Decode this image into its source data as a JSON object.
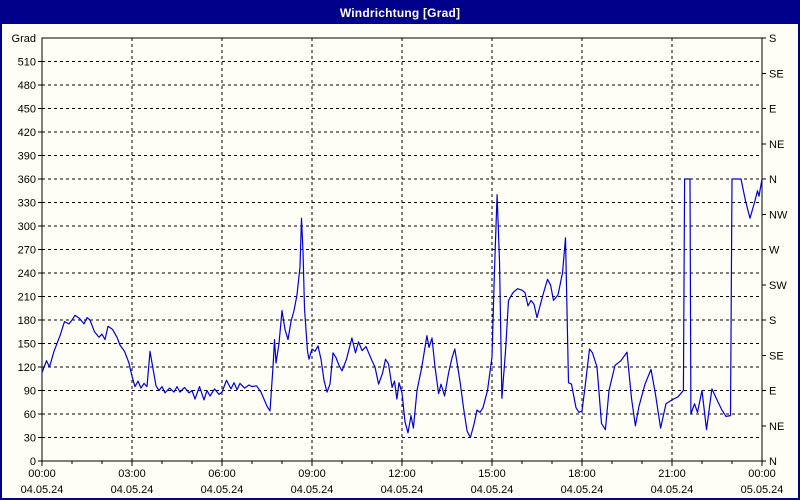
{
  "window": {
    "title": "Windrichtung [Grad]"
  },
  "colors": {
    "titlebar_bg": "#00008b",
    "titlebar_text": "#ffffff",
    "window_border": "#00008b",
    "background": "#fffef6",
    "grid": "#000000",
    "axis": "#000000",
    "tick_text": "#000000",
    "line": "#0000d8"
  },
  "chart_data": {
    "type": "line",
    "title": "Windrichtung [Grad]",
    "ylabel_left": "Grad",
    "ylim": [
      0,
      540
    ],
    "xlim_hours": [
      0,
      24
    ],
    "grid": "dashed",
    "legend": "none",
    "y_ticks_left": [
      0,
      30,
      60,
      90,
      120,
      150,
      180,
      210,
      240,
      270,
      300,
      330,
      360,
      390,
      420,
      450,
      480,
      510
    ],
    "y_ticks_right": [
      {
        "deg": 0,
        "label": "N"
      },
      {
        "deg": 45,
        "label": "NE"
      },
      {
        "deg": 90,
        "label": "E"
      },
      {
        "deg": 135,
        "label": "SE"
      },
      {
        "deg": 180,
        "label": "S"
      },
      {
        "deg": 225,
        "label": "SW"
      },
      {
        "deg": 270,
        "label": "W"
      },
      {
        "deg": 315,
        "label": "NW"
      },
      {
        "deg": 360,
        "label": "N"
      },
      {
        "deg": 405,
        "label": "NE"
      },
      {
        "deg": 450,
        "label": "E"
      },
      {
        "deg": 495,
        "label": "SE"
      },
      {
        "deg": 540,
        "label": "S"
      }
    ],
    "x_ticks": [
      {
        "hour": 0,
        "time": "00:00",
        "date": "04.05.24"
      },
      {
        "hour": 3,
        "time": "03:00",
        "date": "04.05.24"
      },
      {
        "hour": 6,
        "time": "06:00",
        "date": "04.05.24"
      },
      {
        "hour": 9,
        "time": "09:00",
        "date": "04.05.24"
      },
      {
        "hour": 12,
        "time": "12:00",
        "date": "04.05.24"
      },
      {
        "hour": 15,
        "time": "15:00",
        "date": "04.05.24"
      },
      {
        "hour": 18,
        "time": "18:00",
        "date": "04.05.24"
      },
      {
        "hour": 21,
        "time": "21:00",
        "date": "04.05.24"
      },
      {
        "hour": 24,
        "time": "00:00",
        "date": "05.05.24"
      }
    ],
    "x_minor_step_hours": 1,
    "series": [
      {
        "name": "Windrichtung",
        "color": "#0000d8",
        "points": [
          [
            0,
            113
          ],
          [
            0.15,
            128
          ],
          [
            0.25,
            120
          ],
          [
            0.4,
            140
          ],
          [
            0.6,
            160
          ],
          [
            0.75,
            178
          ],
          [
            0.9,
            175
          ],
          [
            1,
            180
          ],
          [
            1.1,
            186
          ],
          [
            1.25,
            182
          ],
          [
            1.4,
            175
          ],
          [
            1.5,
            183
          ],
          [
            1.6,
            180
          ],
          [
            1.75,
            165
          ],
          [
            1.9,
            158
          ],
          [
            2,
            162
          ],
          [
            2.1,
            155
          ],
          [
            2.2,
            172
          ],
          [
            2.35,
            168
          ],
          [
            2.5,
            158
          ],
          [
            2.6,
            148
          ],
          [
            2.75,
            140
          ],
          [
            2.9,
            125
          ],
          [
            3,
            108
          ],
          [
            3.1,
            95
          ],
          [
            3.2,
            102
          ],
          [
            3.3,
            93
          ],
          [
            3.4,
            99
          ],
          [
            3.5,
            95
          ],
          [
            3.6,
            140
          ],
          [
            3.7,
            118
          ],
          [
            3.8,
            96
          ],
          [
            3.9,
            90
          ],
          [
            4,
            95
          ],
          [
            4.1,
            87
          ],
          [
            4.25,
            93
          ],
          [
            4.4,
            88
          ],
          [
            4.5,
            95
          ],
          [
            4.6,
            88
          ],
          [
            4.75,
            94
          ],
          [
            4.9,
            87
          ],
          [
            5,
            90
          ],
          [
            5.1,
            79
          ],
          [
            5.25,
            95
          ],
          [
            5.4,
            78
          ],
          [
            5.5,
            90
          ],
          [
            5.6,
            83
          ],
          [
            5.75,
            92
          ],
          [
            5.9,
            85
          ],
          [
            6,
            88
          ],
          [
            6.15,
            103
          ],
          [
            6.3,
            92
          ],
          [
            6.4,
            100
          ],
          [
            6.5,
            91
          ],
          [
            6.6,
            99
          ],
          [
            6.75,
            93
          ],
          [
            6.9,
            97
          ],
          [
            7,
            95
          ],
          [
            7.15,
            96
          ],
          [
            7.3,
            88
          ],
          [
            7.5,
            70
          ],
          [
            7.6,
            64
          ],
          [
            7.7,
            120
          ],
          [
            7.75,
            155
          ],
          [
            7.8,
            125
          ],
          [
            7.9,
            150
          ],
          [
            8,
            192
          ],
          [
            8.1,
            168
          ],
          [
            8.2,
            155
          ],
          [
            8.3,
            178
          ],
          [
            8.4,
            192
          ],
          [
            8.5,
            212
          ],
          [
            8.6,
            248
          ],
          [
            8.65,
            310
          ],
          [
            8.7,
            268
          ],
          [
            8.75,
            195
          ],
          [
            8.85,
            140
          ],
          [
            8.9,
            130
          ],
          [
            9,
            143
          ],
          [
            9.1,
            140
          ],
          [
            9.2,
            147
          ],
          [
            9.3,
            130
          ],
          [
            9.4,
            103
          ],
          [
            9.5,
            88
          ],
          [
            9.6,
            98
          ],
          [
            9.7,
            138
          ],
          [
            9.8,
            132
          ],
          [
            9.9,
            122
          ],
          [
            10,
            115
          ],
          [
            10.15,
            130
          ],
          [
            10.33,
            157
          ],
          [
            10.45,
            138
          ],
          [
            10.55,
            152
          ],
          [
            10.67,
            141
          ],
          [
            10.8,
            146
          ],
          [
            11,
            128
          ],
          [
            11.1,
            120
          ],
          [
            11.22,
            98
          ],
          [
            11.35,
            112
          ],
          [
            11.45,
            130
          ],
          [
            11.55,
            124
          ],
          [
            11.67,
            94
          ],
          [
            11.75,
            102
          ],
          [
            11.83,
            79
          ],
          [
            11.9,
            100
          ],
          [
            12,
            87
          ],
          [
            12.1,
            50
          ],
          [
            12.2,
            36
          ],
          [
            12.3,
            58
          ],
          [
            12.38,
            42
          ],
          [
            12.5,
            90
          ],
          [
            12.65,
            118
          ],
          [
            12.72,
            134
          ],
          [
            12.83,
            160
          ],
          [
            12.9,
            145
          ],
          [
            13,
            157
          ],
          [
            13.1,
            120
          ],
          [
            13.22,
            86
          ],
          [
            13.3,
            98
          ],
          [
            13.42,
            83
          ],
          [
            13.55,
            112
          ],
          [
            13.67,
            132
          ],
          [
            13.76,
            143
          ],
          [
            13.85,
            122
          ],
          [
            13.94,
            100
          ],
          [
            14.05,
            68
          ],
          [
            14.17,
            38
          ],
          [
            14.28,
            30
          ],
          [
            14.4,
            47
          ],
          [
            14.5,
            65
          ],
          [
            14.6,
            62
          ],
          [
            14.7,
            68
          ],
          [
            14.85,
            90
          ],
          [
            15,
            133
          ],
          [
            15.08,
            240
          ],
          [
            15.17,
            340
          ],
          [
            15.25,
            255
          ],
          [
            15.33,
            80
          ],
          [
            15.45,
            140
          ],
          [
            15.55,
            205
          ],
          [
            15.7,
            215
          ],
          [
            15.85,
            220
          ],
          [
            16,
            218
          ],
          [
            16.1,
            215
          ],
          [
            16.2,
            198
          ],
          [
            16.3,
            205
          ],
          [
            16.4,
            200
          ],
          [
            16.5,
            183
          ],
          [
            16.6,
            198
          ],
          [
            16.72,
            215
          ],
          [
            16.85,
            232
          ],
          [
            16.95,
            225
          ],
          [
            17.05,
            205
          ],
          [
            17.2,
            212
          ],
          [
            17.35,
            240
          ],
          [
            17.45,
            285
          ],
          [
            17.55,
            100
          ],
          [
            17.65,
            98
          ],
          [
            17.8,
            68
          ],
          [
            17.9,
            62
          ],
          [
            18,
            64
          ],
          [
            18.1,
            94
          ],
          [
            18.25,
            143
          ],
          [
            18.35,
            138
          ],
          [
            18.5,
            120
          ],
          [
            18.65,
            48
          ],
          [
            18.78,
            40
          ],
          [
            18.9,
            90
          ],
          [
            19.1,
            122
          ],
          [
            19.3,
            128
          ],
          [
            19.5,
            139
          ],
          [
            19.65,
            80
          ],
          [
            19.78,
            45
          ],
          [
            19.9,
            70
          ],
          [
            20.1,
            98
          ],
          [
            20.3,
            117
          ],
          [
            20.45,
            85
          ],
          [
            20.62,
            42
          ],
          [
            20.8,
            73
          ],
          [
            21,
            78
          ],
          [
            21.2,
            82
          ],
          [
            21.38,
            90
          ],
          [
            21.42,
            360
          ],
          [
            21.6,
            360
          ],
          [
            21.63,
            60
          ],
          [
            21.75,
            73
          ],
          [
            21.85,
            62
          ],
          [
            22,
            90
          ],
          [
            22.15,
            40
          ],
          [
            22.33,
            92
          ],
          [
            22.5,
            78
          ],
          [
            22.65,
            66
          ],
          [
            22.8,
            57
          ],
          [
            22.95,
            58
          ],
          [
            23,
            360
          ],
          [
            23.3,
            360
          ],
          [
            23.45,
            332
          ],
          [
            23.6,
            310
          ],
          [
            23.75,
            330
          ],
          [
            23.85,
            345
          ],
          [
            23.9,
            338
          ],
          [
            24,
            360
          ]
        ]
      }
    ]
  }
}
